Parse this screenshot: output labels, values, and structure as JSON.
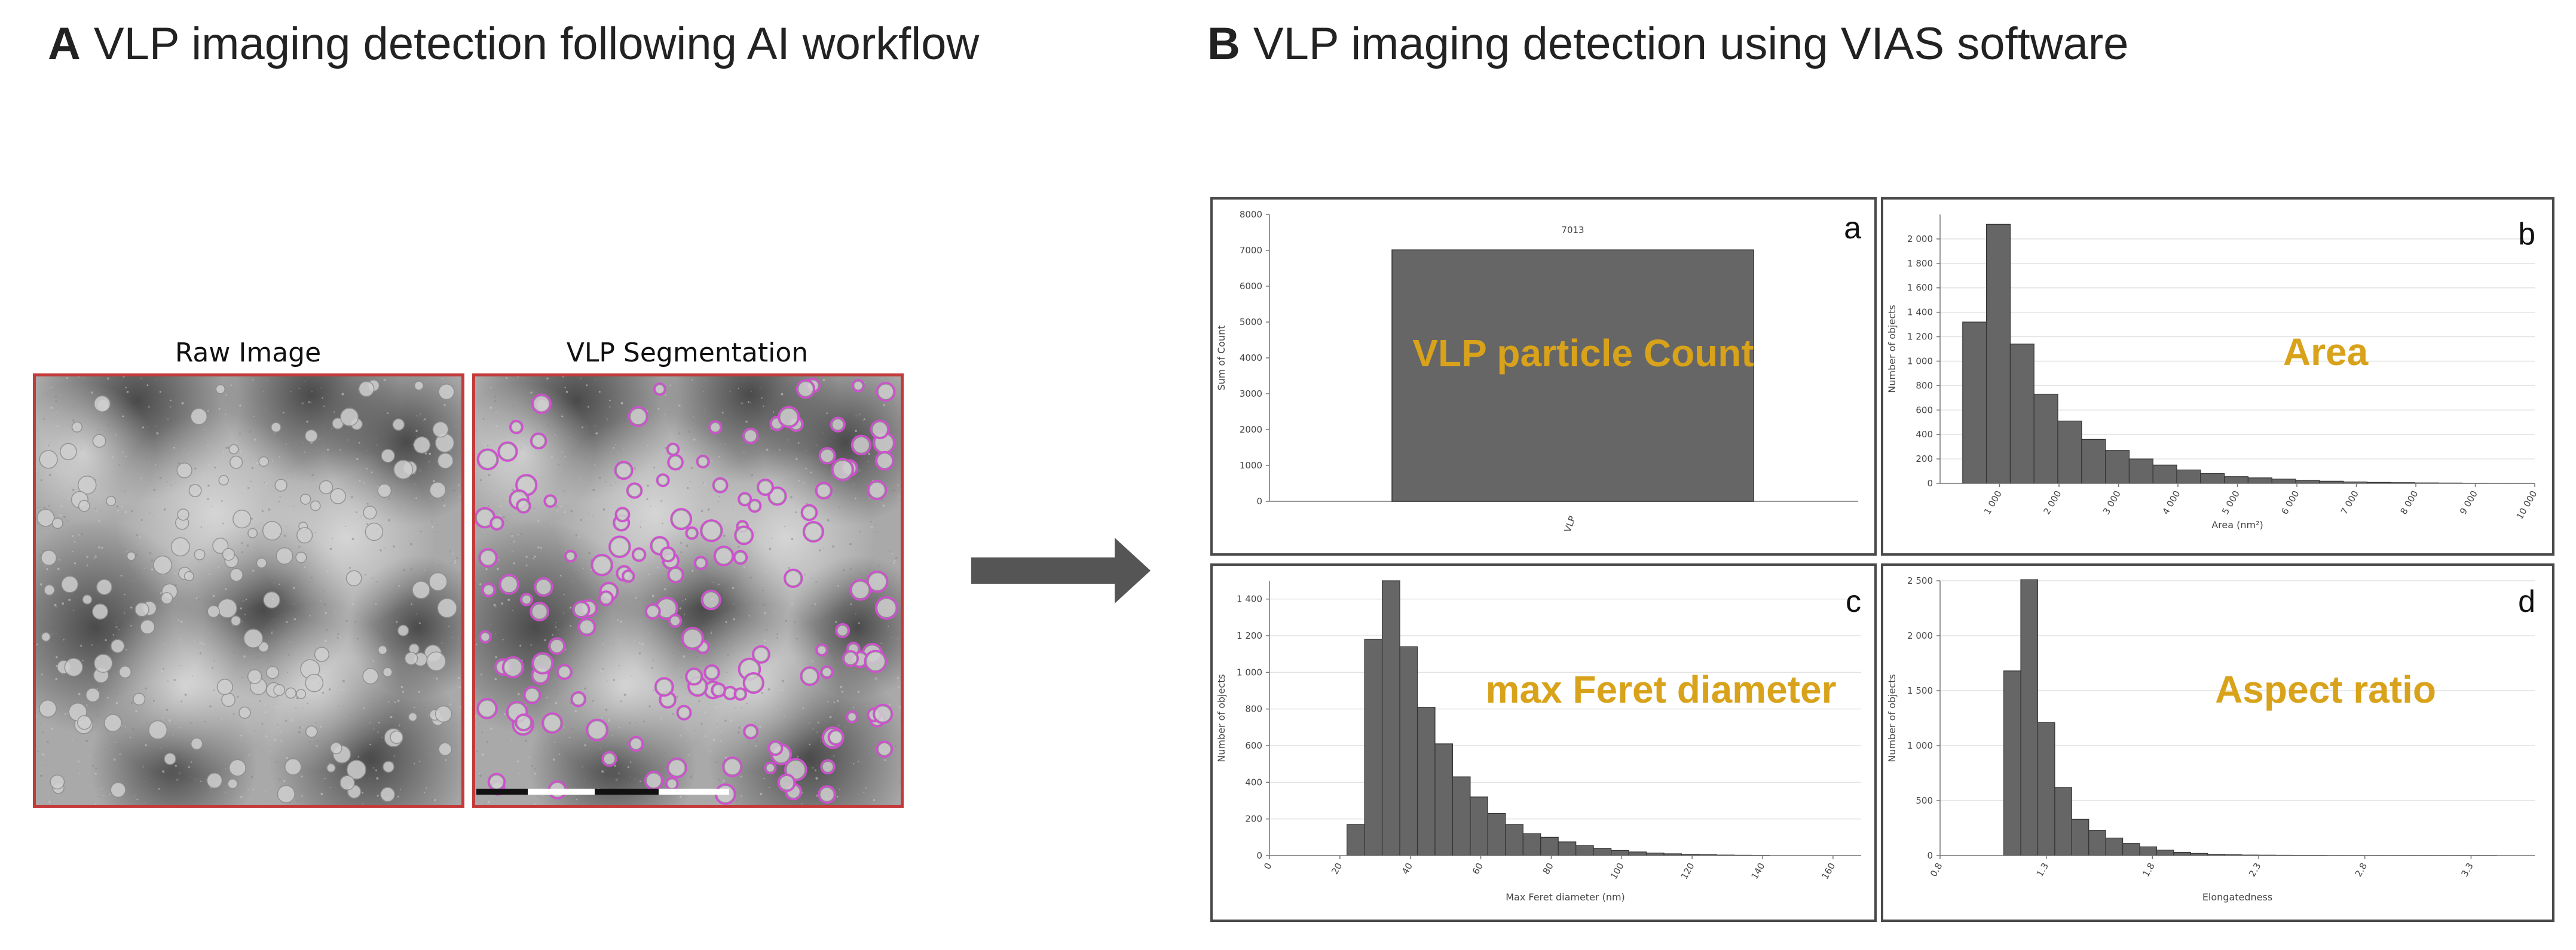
{
  "panels": {
    "a": {
      "letter": "A",
      "title": "VLP imaging detection following AI workflow"
    },
    "b": {
      "letter": "B",
      "title": "VLP imaging detection using VIAS software"
    }
  },
  "images": {
    "raw_label": "Raw Image",
    "seg_label": "VLP Segmentation"
  },
  "chart_data": [
    {
      "id": "a",
      "type": "bar",
      "corner": "a",
      "overlay": "VLP particle Count",
      "categories": [
        "VLP"
      ],
      "values": [
        7013
      ],
      "data_labels": [
        "7013"
      ],
      "ylabel": "Sum of Count",
      "ylim": [
        0,
        8000
      ],
      "yticks": [
        0,
        1000,
        2000,
        3000,
        4000,
        5000,
        6000,
        7000,
        8000
      ],
      "ytick_labels": [
        "0",
        "1000",
        "2000",
        "3000",
        "4000",
        "5000",
        "6000",
        "7000",
        "8000"
      ],
      "grid": false,
      "color": "#666666"
    },
    {
      "id": "b",
      "type": "bar",
      "corner": "b",
      "overlay": "Area",
      "xlabel": "Area (nm²)",
      "ylabel": "Number of objects",
      "bins_start": 380,
      "bin_width": 400,
      "values": [
        1320,
        2120,
        1140,
        730,
        510,
        360,
        270,
        200,
        150,
        110,
        80,
        55,
        45,
        35,
        25,
        18,
        12,
        8,
        6,
        4,
        3,
        2,
        1,
        1
      ],
      "xlim": [
        0,
        10000
      ],
      "xticks": [
        1000,
        2000,
        3000,
        4000,
        5000,
        6000,
        7000,
        8000,
        9000,
        10000
      ],
      "xtick_labels": [
        "1 000",
        "2 000",
        "3 000",
        "4 000",
        "5 000",
        "6 000",
        "7 000",
        "8 000",
        "9 000",
        "10 000"
      ],
      "ylim": [
        0,
        2200
      ],
      "yticks": [
        0,
        200,
        400,
        600,
        800,
        1000,
        1200,
        1400,
        1600,
        1800,
        2000
      ],
      "ytick_labels": [
        "0",
        "200",
        "400",
        "600",
        "800",
        "1 000",
        "1 200",
        "1 400",
        "1 600",
        "1 800",
        "2 000"
      ],
      "grid": true,
      "color": "#666666"
    },
    {
      "id": "c",
      "type": "bar",
      "corner": "c",
      "overlay": "max Feret diameter",
      "xlabel": "Max Feret diameter (nm)",
      "ylabel": "Number of objects",
      "bins_start": 22,
      "bin_width": 5,
      "values": [
        170,
        1180,
        1500,
        1140,
        810,
        610,
        430,
        320,
        230,
        170,
        120,
        100,
        75,
        55,
        40,
        28,
        20,
        14,
        10,
        7,
        5,
        3,
        2,
        1
      ],
      "xlim": [
        0,
        168
      ],
      "xticks": [
        0,
        20,
        40,
        60,
        80,
        100,
        120,
        140,
        160
      ],
      "xtick_labels": [
        "0",
        "20",
        "40",
        "60",
        "80",
        "100",
        "120",
        "140",
        "160"
      ],
      "ylim": [
        0,
        1500
      ],
      "yticks": [
        0,
        200,
        400,
        600,
        800,
        1000,
        1200,
        1400
      ],
      "ytick_labels": [
        "0",
        "200",
        "400",
        "600",
        "800",
        "1 000",
        "1 200",
        "1 400"
      ],
      "grid": true,
      "color": "#666666"
    },
    {
      "id": "d",
      "type": "bar",
      "corner": "d",
      "overlay": "Aspect ratio",
      "xlabel": "Elongatedness",
      "ylabel": "Number of objects",
      "bins_start": 1.1,
      "bin_width": 0.08,
      "values": [
        1680,
        2510,
        1210,
        620,
        330,
        230,
        160,
        110,
        80,
        50,
        30,
        20,
        12,
        8,
        5,
        4,
        3,
        2,
        2,
        1,
        1,
        1,
        1,
        1,
        1,
        1,
        1,
        1,
        1
      ],
      "xlim": [
        0.8,
        3.6
      ],
      "xticks": [
        0.8,
        1.3,
        1.8,
        2.3,
        2.8,
        3.3
      ],
      "xtick_labels": [
        "0.8",
        "1.3",
        "1.8",
        "2.3",
        "2.8",
        "3.3"
      ],
      "ylim": [
        0,
        2500
      ],
      "yticks": [
        0,
        500,
        1000,
        1500,
        2000,
        2500
      ],
      "ytick_labels": [
        "0",
        "500",
        "1 000",
        "1 500",
        "2 000",
        "2 500"
      ],
      "grid": true,
      "color": "#666666"
    }
  ]
}
